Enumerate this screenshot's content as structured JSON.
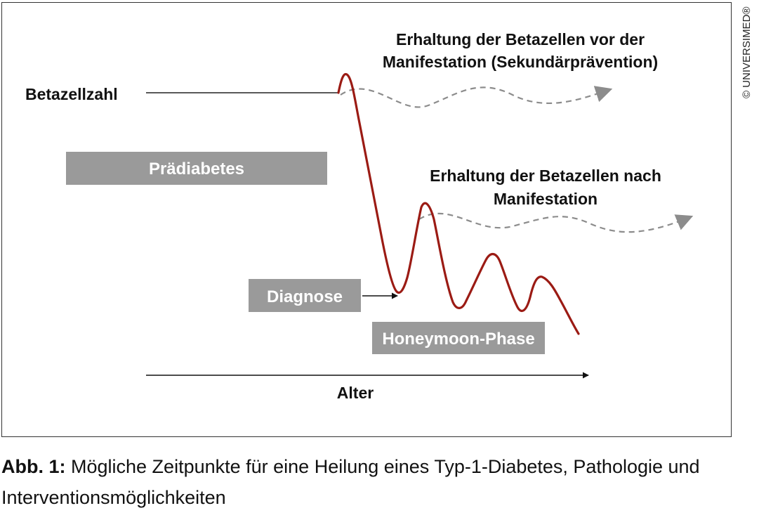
{
  "diagram": {
    "y_axis_label": "Betazellzahl",
    "x_axis_label": "Alter",
    "prediabetes_label": "Prädiabetes",
    "diagnose_label": "Diagnose",
    "honeymoon_label": "Honeymoon-Phase",
    "secondary_prevention": {
      "line1": "Erhaltung der Betazellen vor der",
      "line2": "Manifestation (Sekundärprävention)"
    },
    "after_manifestation": {
      "line1": "Erhaltung der Betazellen nach",
      "line2": "Manifestation"
    },
    "copyright": "© UNIVERSIMED®",
    "colors": {
      "curve": "#9b1b14",
      "box_fill": "#9a9a9a",
      "dashed": "#8c8c8c",
      "arrow": "#111111"
    }
  },
  "caption": {
    "prefix": "Abb. 1:",
    "text": " Mögliche Zeitpunkte für eine Heilung eines Typ-1-Diabetes, Pathologie und Interventionsmöglichkeiten"
  }
}
